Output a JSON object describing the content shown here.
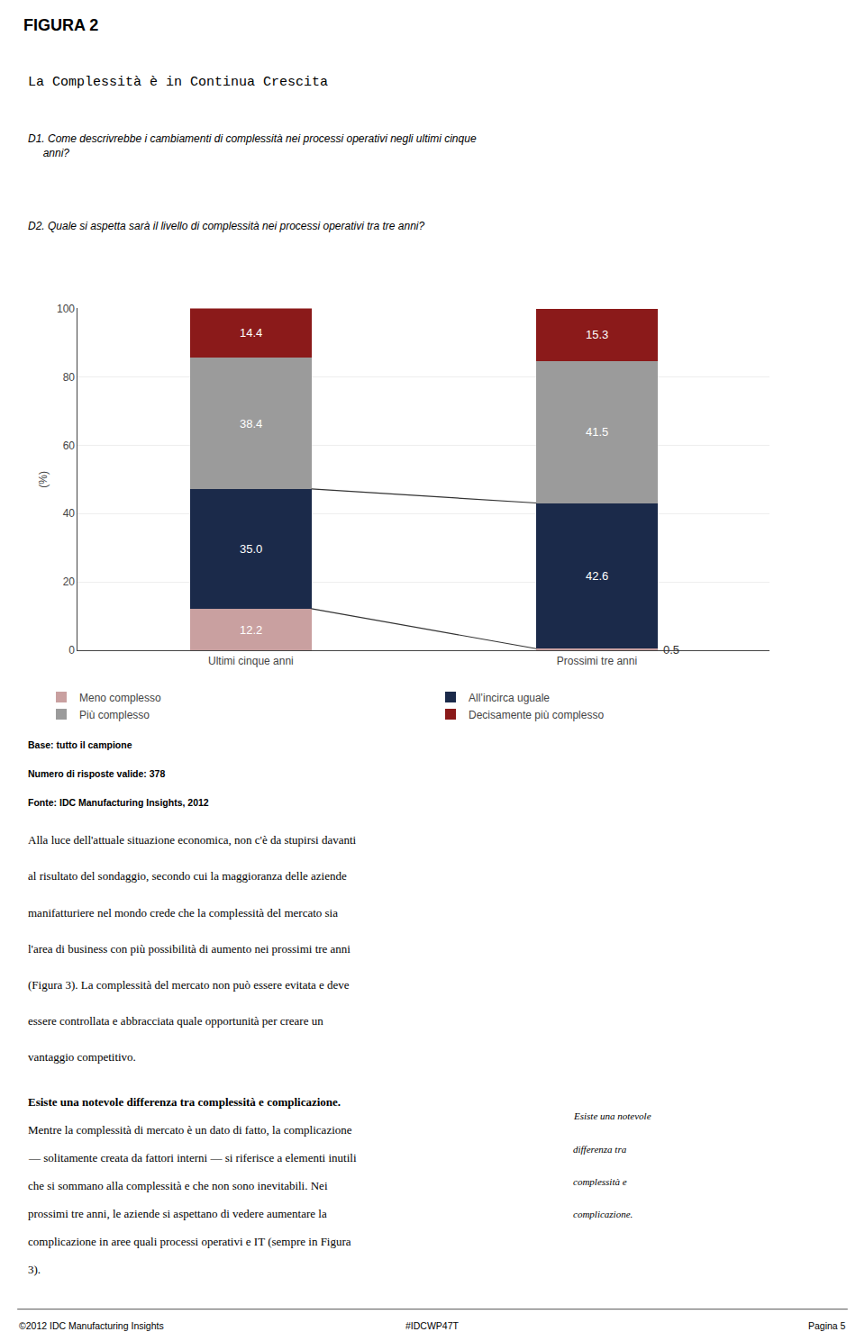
{
  "chart_data": {
    "type": "bar",
    "stacked": true,
    "title": "La Complessità è in Continua Crescita",
    "ylabel": "(%)",
    "categories": [
      "Ultimi cinque anni",
      "Prossimi tre anni"
    ],
    "series": [
      {
        "name": "Meno complesso",
        "color": "#c9a0a0",
        "values": [
          12.2,
          0.5
        ]
      },
      {
        "name": "All’incirca uguale",
        "color": "#1b2a4a",
        "values": [
          35.0,
          42.6
        ],
        "value_labels": [
          "35.0",
          "42.6"
        ]
      },
      {
        "name": "Più complesso",
        "color": "#9b9b9b",
        "values": [
          38.4,
          41.5
        ]
      },
      {
        "name": "Decisamente più complesso",
        "color": "#8b1a1a",
        "values": [
          14.4,
          15.3
        ]
      }
    ],
    "ylim": [
      0,
      100
    ],
    "yticks": [
      0,
      20,
      40,
      60,
      80,
      100
    ],
    "grid": true,
    "data_labels": true,
    "legend": "bottom",
    "connectors": [
      {
        "values": [
          12.2,
          0.5
        ],
        "color": "#333333"
      },
      {
        "values": [
          47.2,
          43.1
        ],
        "color": "#333333"
      }
    ],
    "annotations": [
      [
        "FIGURA 2"
      ],
      [
        "D1. Come descrivrebbe i cambiamenti di complessità nei processi operativi negli ultimi cinque\n     anni?",
        "D2. Quale si aspetta sarà il livello di complessità nei processi operativi tra tre anni?"
      ],
      [
        "Base: tutto il campione",
        "Numero di risposte valide: 378",
        "Fonte: IDC Manufacturing Insights, 2012"
      ],
      [
        "Alla luce dell'attuale situazione economica, non c'è da stupirsi davanti",
        "al risultato del sondaggio, secondo cui la maggioranza delle aziende",
        "manifatturiere nel mondo crede che la complessità del mercato sia",
        "l'area di business con più possibilità di aumento nei prossimi tre anni",
        "(Figura 3). La complessità del mercato non può essere evitata e deve",
        "essere controllata e abbracciata quale opportunità per creare un",
        "vantaggio competitivo."
      ],
      [
        "Esiste una notevole differenza tra complessità e complicazione.",
        "Mentre la complessità di mercato è un dato di fatto, la complicazione",
        "— solitamente creata da fattori interni — si riferisce a elementi inutili",
        "che si sommano alla complessità e che non sono inevitabili. Nei",
        "prossimi tre anni, le aziende si aspettano di vedere aumentare la",
        "complicazione in aree quali processi operativi e IT (sempre in Figura",
        "3)."
      ],
      [
        "Esiste una notevole",
        "differenza tra",
        "complessità e",
        "complicazione."
      ],
      [
        "©2012 IDC Manufacturing Insights",
        "#IDCWP47T",
        "Pagina 5"
      ]
    ]
  }
}
